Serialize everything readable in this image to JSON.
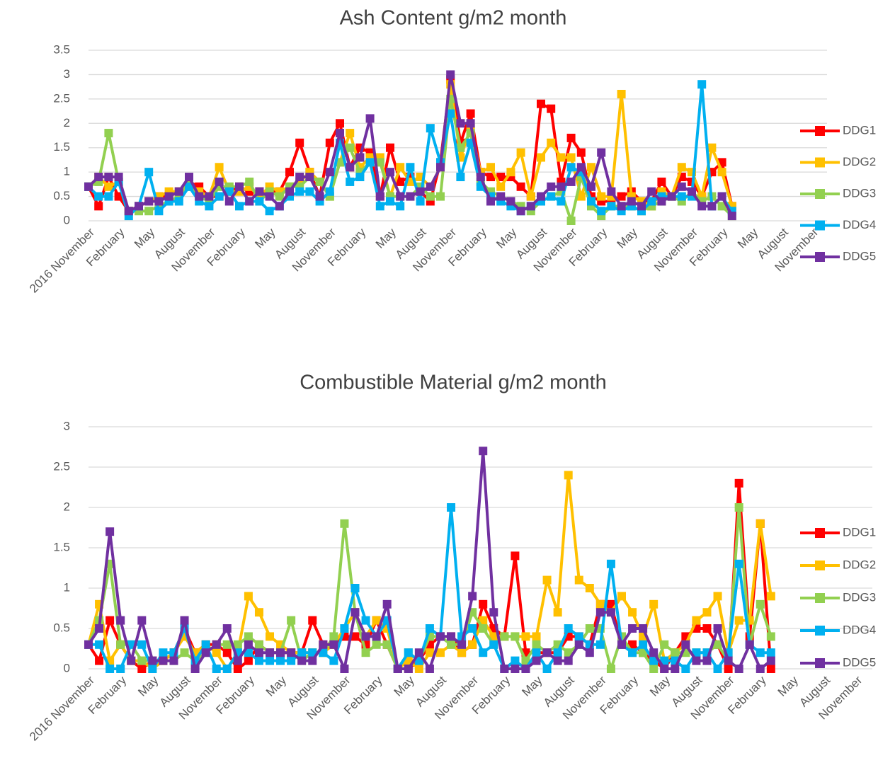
{
  "chart_data": [
    {
      "type": "line",
      "title": "Ash Content g/m2 month",
      "categories": [
        "2016 November",
        null,
        null,
        "February",
        null,
        null,
        "May",
        null,
        null,
        "August",
        null,
        null,
        "November",
        null,
        null,
        "February",
        null,
        null,
        "May",
        null,
        null,
        "August",
        null,
        null,
        "November",
        null,
        null,
        "February",
        null,
        null,
        "May",
        null,
        null,
        "August",
        null,
        null,
        "November",
        null,
        null,
        "February",
        null,
        null,
        "May",
        null,
        null,
        "August",
        null,
        null,
        "November",
        null,
        null,
        "February",
        null,
        null,
        "May",
        null,
        null,
        "August",
        null,
        null,
        "November",
        null,
        null,
        "February",
        null,
        null,
        "May",
        null,
        null,
        "August",
        null,
        null,
        "November"
      ],
      "ylim": [
        0,
        3.5
      ],
      "yticks": [
        0,
        0.5,
        1,
        1.5,
        2,
        2.5,
        3,
        3.5
      ],
      "grid": true,
      "legend": "right",
      "series": [
        {
          "name": "DDG1",
          "color": "#ff0000",
          "values": [
            0.7,
            0.3,
            0.9,
            0.5,
            0.2,
            0.3,
            0.4,
            0.5,
            0.5,
            0.6,
            0.8,
            0.7,
            0.5,
            0.5,
            0.6,
            0.7,
            0.6,
            0.6,
            0.6,
            0.6,
            1.0,
            1.6,
            1.0,
            0.5,
            1.6,
            2.0,
            1.1,
            1.5,
            1.4,
            0.5,
            1.5,
            0.8,
            0.9,
            0.6,
            0.4,
            1.2,
            2.9,
            1.6,
            2.2,
            1.0,
            0.9,
            0.9,
            0.9,
            0.7,
            0.5,
            2.4,
            2.3,
            0.8,
            1.7,
            1.4,
            0.5,
            0.4,
            0.4,
            0.5,
            0.6,
            0.4,
            0.4,
            0.8,
            0.5,
            0.9,
            0.8,
            0.5,
            1.0,
            1.2,
            0.3,
            null,
            null,
            null,
            null,
            null,
            null,
            null,
            null
          ]
        },
        {
          "name": "DDG2",
          "color": "#ffc000",
          "values": [
            0.7,
            0.9,
            0.7,
            0.8,
            0.2,
            0.3,
            0.4,
            0.5,
            0.6,
            0.6,
            0.7,
            0.6,
            0.5,
            1.1,
            0.6,
            0.6,
            0.7,
            0.5,
            0.7,
            0.6,
            0.7,
            0.8,
            1.0,
            0.8,
            0.5,
            1.2,
            1.8,
            1.1,
            1.3,
            1.3,
            0.5,
            1.1,
            0.8,
            0.9,
            0.7,
            1.1,
            2.8,
            1.3,
            1.9,
            1.0,
            1.1,
            0.7,
            1.0,
            1.4,
            0.5,
            1.3,
            1.6,
            1.3,
            1.3,
            0.5,
            1.1,
            0.5,
            0.5,
            2.6,
            0.5,
            0.4,
            0.3,
            0.6,
            0.5,
            1.1,
            1.0,
            0.5,
            1.5,
            1.0,
            0.3,
            null,
            null,
            null,
            null,
            null,
            null,
            null,
            null
          ]
        },
        {
          "name": "DDG3",
          "color": "#92d050",
          "values": [
            0.7,
            0.8,
            1.8,
            0.8,
            0.2,
            0.2,
            0.2,
            0.3,
            0.4,
            0.5,
            0.8,
            0.5,
            0.4,
            0.7,
            0.7,
            0.7,
            0.8,
            0.4,
            0.6,
            0.5,
            0.7,
            0.7,
            0.9,
            0.8,
            0.5,
            1.2,
            1.5,
            1.0,
            1.2,
            1.2,
            0.5,
            0.5,
            0.5,
            0.7,
            0.5,
            0.5,
            2.5,
            1.5,
            1.8,
            0.8,
            0.6,
            0.5,
            0.4,
            0.3,
            0.2,
            0.4,
            0.5,
            0.6,
            0.0,
            0.9,
            0.3,
            0.1,
            0.3,
            0.3,
            0.3,
            0.2,
            0.3,
            0.4,
            0.5,
            0.4,
            0.6,
            0.4,
            0.5,
            0.3,
            0.1,
            null,
            null,
            null,
            null,
            null,
            null,
            null,
            null
          ]
        },
        {
          "name": "DDG4",
          "color": "#00b0f0",
          "values": [
            0.7,
            0.5,
            0.5,
            0.8,
            0.1,
            0.3,
            1.0,
            0.2,
            0.4,
            0.4,
            0.7,
            0.4,
            0.3,
            0.5,
            0.6,
            0.3,
            0.4,
            0.4,
            0.2,
            0.3,
            0.5,
            0.6,
            0.6,
            0.4,
            0.6,
            1.6,
            0.8,
            0.9,
            1.2,
            0.3,
            0.4,
            0.3,
            1.1,
            0.4,
            1.9,
            1.2,
            2.2,
            0.9,
            1.6,
            0.7,
            0.5,
            0.4,
            0.3,
            0.2,
            0.3,
            0.4,
            0.5,
            0.4,
            1.1,
            1.0,
            0.4,
            0.2,
            0.3,
            0.2,
            0.3,
            0.2,
            0.4,
            0.5,
            0.5,
            0.5,
            0.5,
            2.8,
            0.3,
            0.5,
            0.2,
            null,
            null,
            null,
            null,
            null,
            null,
            null,
            null
          ]
        },
        {
          "name": "DDG5",
          "color": "#7030a0",
          "values": [
            0.7,
            0.9,
            0.9,
            0.9,
            0.2,
            0.3,
            0.4,
            0.4,
            0.5,
            0.6,
            0.9,
            0.5,
            0.5,
            0.8,
            0.4,
            0.7,
            0.4,
            0.6,
            0.5,
            0.3,
            0.6,
            0.9,
            0.9,
            0.5,
            1.0,
            1.8,
            1.1,
            1.3,
            2.1,
            0.5,
            1.0,
            0.5,
            0.5,
            0.6,
            0.7,
            1.1,
            3.0,
            2.0,
            2.0,
            0.9,
            0.4,
            0.5,
            0.4,
            0.2,
            0.3,
            0.5,
            0.7,
            0.7,
            0.8,
            1.1,
            0.7,
            1.4,
            0.6,
            0.3,
            0.4,
            0.3,
            0.6,
            0.4,
            0.5,
            0.7,
            0.6,
            0.3,
            0.3,
            0.5,
            0.1,
            null,
            null,
            null,
            null,
            null,
            null,
            null,
            null
          ]
        }
      ]
    },
    {
      "type": "line",
      "title": "Combustible Material g/m2 month",
      "categories": [
        "2016 November",
        null,
        null,
        "February",
        null,
        null,
        "May",
        null,
        null,
        "August",
        null,
        null,
        "November",
        null,
        null,
        "February",
        null,
        null,
        "May",
        null,
        null,
        "August",
        null,
        null,
        "November",
        null,
        null,
        "February",
        null,
        null,
        "May",
        null,
        null,
        "August",
        null,
        null,
        "November",
        null,
        null,
        "February",
        null,
        null,
        "May",
        null,
        null,
        "August",
        null,
        null,
        "November",
        null,
        null,
        "February",
        null,
        null,
        "May",
        null,
        null,
        "August",
        null,
        null,
        "November",
        null,
        null,
        "February",
        null,
        null,
        "May",
        null,
        null,
        "August",
        null,
        null,
        "November"
      ],
      "ylim": [
        0,
        3
      ],
      "yticks": [
        0,
        0.5,
        1,
        1.5,
        2,
        2.5,
        3
      ],
      "grid": true,
      "legend": "right",
      "series": [
        {
          "name": "DDG1",
          "color": "#ff0000",
          "values": [
            0.3,
            0.1,
            0.6,
            0.3,
            0.1,
            0.0,
            0.1,
            0.1,
            0.2,
            0.5,
            0.2,
            0.3,
            0.3,
            0.2,
            0.0,
            0.1,
            0.3,
            0.2,
            0.2,
            0.2,
            0.2,
            0.6,
            0.3,
            0.3,
            0.4,
            0.4,
            0.3,
            0.6,
            0.3,
            0.0,
            0.0,
            0.1,
            0.3,
            0.4,
            0.4,
            0.2,
            0.3,
            0.8,
            0.5,
            0.4,
            1.4,
            0.2,
            0.2,
            0.2,
            0.2,
            0.4,
            0.4,
            0.3,
            0.8,
            0.8,
            0.3,
            0.3,
            0.2,
            0.1,
            0.0,
            0.2,
            0.4,
            0.5,
            0.5,
            0.3,
            0.0,
            2.3,
            0.4,
            1.8,
            0.0,
            null,
            null,
            null,
            null,
            null,
            null,
            null,
            null
          ]
        },
        {
          "name": "DDG2",
          "color": "#ffc000",
          "values": [
            0.3,
            0.8,
            0.1,
            0.3,
            0.1,
            0.1,
            0.0,
            0.1,
            0.2,
            0.4,
            0.2,
            0.3,
            0.2,
            0.0,
            0.2,
            0.9,
            0.7,
            0.4,
            0.3,
            0.2,
            0.2,
            0.2,
            0.2,
            0.3,
            0.5,
            0.7,
            0.4,
            0.6,
            0.5,
            0.0,
            0.1,
            0.0,
            0.2,
            0.2,
            0.3,
            0.2,
            0.3,
            0.6,
            0.4,
            0.4,
            0.4,
            0.4,
            0.4,
            1.1,
            0.7,
            2.4,
            1.1,
            1.0,
            0.8,
            0.7,
            0.9,
            0.7,
            0.4,
            0.8,
            0.1,
            0.2,
            0.3,
            0.6,
            0.7,
            0.9,
            0.2,
            0.6,
            0.6,
            1.8,
            0.9,
            null,
            null,
            null,
            null,
            null,
            null,
            null,
            null
          ]
        },
        {
          "name": "DDG3",
          "color": "#92d050",
          "values": [
            0.3,
            0.6,
            1.3,
            0.3,
            0.3,
            0.1,
            0.1,
            0.1,
            0.1,
            0.2,
            0.1,
            0.2,
            0.3,
            0.3,
            0.3,
            0.4,
            0.3,
            0.2,
            0.2,
            0.6,
            0.1,
            0.2,
            0.2,
            0.4,
            1.8,
            0.7,
            0.2,
            0.3,
            0.3,
            0.0,
            0.2,
            0.1,
            0.4,
            0.4,
            0.3,
            0.3,
            0.7,
            0.5,
            0.3,
            0.4,
            0.4,
            0.1,
            0.3,
            0.2,
            0.3,
            0.2,
            0.3,
            0.5,
            0.5,
            0.0,
            0.4,
            0.2,
            0.2,
            0.0,
            0.3,
            0.2,
            0.2,
            0.2,
            0.2,
            0.3,
            0.1,
            2.0,
            0.3,
            0.8,
            0.4,
            null,
            null,
            null,
            null,
            null,
            null,
            null,
            null
          ]
        },
        {
          "name": "DDG4",
          "color": "#00b0f0",
          "values": [
            0.3,
            0.3,
            0.0,
            0.0,
            0.3,
            0.3,
            0.0,
            0.2,
            0.2,
            0.5,
            0.1,
            0.3,
            0.0,
            0.0,
            0.2,
            0.2,
            0.1,
            0.1,
            0.1,
            0.1,
            0.2,
            0.2,
            0.2,
            0.1,
            0.5,
            1.0,
            0.6,
            0.4,
            0.6,
            0.0,
            0.2,
            0.1,
            0.5,
            0.4,
            2.0,
            0.4,
            0.5,
            0.2,
            0.3,
            0.0,
            0.1,
            0.0,
            0.2,
            0.0,
            0.2,
            0.5,
            0.4,
            0.3,
            0.3,
            1.3,
            0.3,
            0.2,
            0.3,
            0.1,
            0.1,
            0.1,
            0.0,
            0.2,
            0.2,
            0.0,
            0.2,
            1.3,
            0.3,
            0.2,
            0.2,
            null,
            null,
            null,
            null,
            null,
            null,
            null,
            null
          ]
        },
        {
          "name": "DDG5",
          "color": "#7030a0",
          "values": [
            0.3,
            0.5,
            1.7,
            0.6,
            0.1,
            0.6,
            0.1,
            0.1,
            0.1,
            0.6,
            0.0,
            0.2,
            0.3,
            0.5,
            0.1,
            0.3,
            0.2,
            0.2,
            0.2,
            0.2,
            0.1,
            0.1,
            0.3,
            0.3,
            0.0,
            0.7,
            0.4,
            0.4,
            0.8,
            0.0,
            0.0,
            0.2,
            0.0,
            0.4,
            0.4,
            0.3,
            0.9,
            2.7,
            0.7,
            0.0,
            0.0,
            0.0,
            0.1,
            0.2,
            0.1,
            0.1,
            0.3,
            0.2,
            0.7,
            0.7,
            0.3,
            0.5,
            0.5,
            0.2,
            0.0,
            0.0,
            0.3,
            0.1,
            0.1,
            0.5,
            0.1,
            0.0,
            0.3,
            0.0,
            0.1,
            null,
            null,
            null,
            null,
            null,
            null,
            null,
            null
          ]
        }
      ]
    }
  ]
}
